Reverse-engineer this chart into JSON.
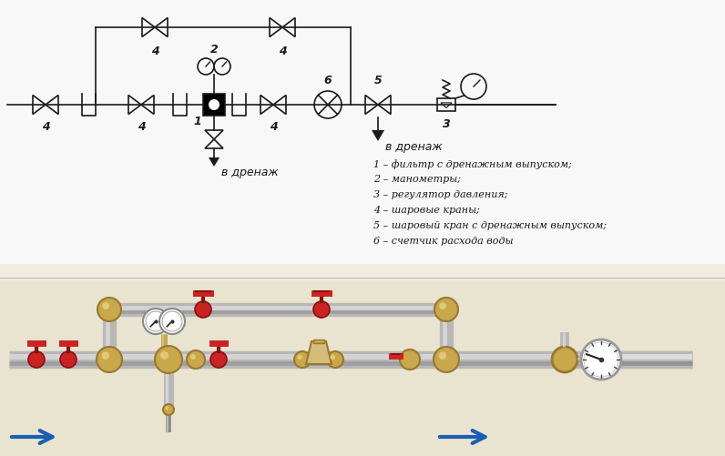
{
  "bg_color": "#f0ede0",
  "legend_lines": [
    "1 – фильтр с дренажным выпуском;",
    "2 – манометры;",
    "3 – регулятор давления;",
    "4 – шаровые краны;",
    "5 – шаровый кран с дренажным выпуском;",
    "6 – счетчик расхода воды"
  ],
  "drain_text": "в дренаж",
  "label_color": "#1a1a1a",
  "lc": "#1a1a1a",
  "pipe_brass": "#c8a84b",
  "pipe_brass_dark": "#9a7830",
  "pipe_brass_light": "#e0c878",
  "pipe_gray": "#b8b8b8",
  "pipe_gray_dark": "#888888",
  "pipe_gray_light": "#e0e0e0",
  "red_valve": "#cc2222",
  "red_valve_dark": "#881111",
  "blue_arrow": "#1a5fb4",
  "schematic_bg": "#ffffff",
  "photo_bg": "#e8e4d0"
}
